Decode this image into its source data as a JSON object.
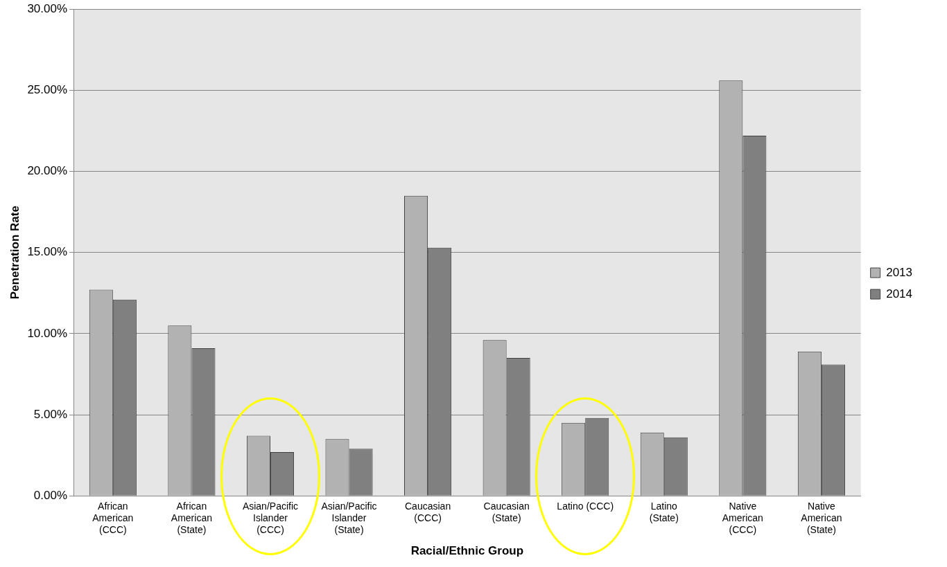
{
  "chart_data": {
    "type": "bar",
    "xlabel": "Racial/Ethnic Group",
    "ylabel": "Penetration Rate",
    "categories": [
      "African American (CCC)",
      "African American (State)",
      "Asian/Pacific Islander (CCC)",
      "Asian/Pacific Islander (State)",
      "Caucasian (CCC)",
      "Caucasian (State)",
      "Latino (CCC)",
      "Latino (State)",
      "Native American (CCC)",
      "Native American (State)"
    ],
    "series": [
      {
        "name": "2013",
        "color": "#b2b2b2",
        "values": [
          12.7,
          10.5,
          3.7,
          3.5,
          18.5,
          9.6,
          4.5,
          3.9,
          25.6,
          8.9
        ]
      },
      {
        "name": "2014",
        "color": "#808080",
        "values": [
          12.1,
          9.1,
          2.7,
          2.9,
          15.3,
          8.5,
          4.8,
          3.6,
          22.2,
          8.1
        ]
      }
    ],
    "ylim": [
      0,
      30
    ],
    "yticks": [
      {
        "value": 0,
        "label": "0.00%"
      },
      {
        "value": 5,
        "label": "5.00%"
      },
      {
        "value": 10,
        "label": "10.00%"
      },
      {
        "value": 15,
        "label": "15.00%"
      },
      {
        "value": 20,
        "label": "20.00%"
      },
      {
        "value": 25,
        "label": "25.00%"
      },
      {
        "value": 30,
        "label": "30.00%"
      }
    ],
    "grid": "y",
    "legend": "right"
  }
}
